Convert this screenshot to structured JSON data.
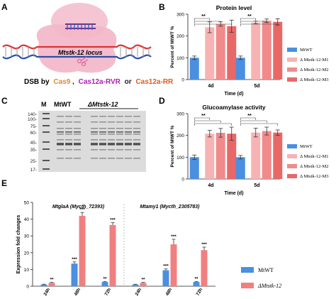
{
  "panels": {
    "A": {
      "letter": "A",
      "locus_label": "Mtstk-12 locus",
      "dsb_prefix": "DSB by",
      "enzyme1": "Cas9",
      "sep1": ",",
      "enzyme2": "Cas12a-RVR",
      "sep2": "or",
      "enzyme3": "Cas12a-RR",
      "colors": {
        "cas9": "#e08a2a",
        "cas12a_rvr": "#b01cb8",
        "cas12a_rr": "#e05a1a",
        "protein": "#f3b6c8"
      }
    },
    "C": {
      "letter": "C",
      "lane_marker": "M",
      "lane_wt": "MtWT",
      "lane_mut": "ΔMtstk-12",
      "mw_markers": [
        "140-",
        "100-",
        "75-",
        "60-",
        "45-",
        "35-",
        "25-",
        "17-"
      ]
    }
  },
  "chart_data": [
    {
      "panel": "B",
      "type": "bar",
      "title": "Protein level",
      "xlabel": "Time (d)",
      "ylabel": "Percent of MtWT %",
      "ylim": [
        0,
        300
      ],
      "yticks": [
        0,
        100,
        200,
        300
      ],
      "categories": [
        "4d",
        "5d"
      ],
      "series": [
        {
          "name": "MtWT",
          "values": [
            100,
            100
          ],
          "errors": [
            8,
            8
          ],
          "color": "#4a8fe0"
        },
        {
          "name": "Δ Mtstk-12-M1",
          "values": [
            240,
            262
          ],
          "errors": [
            25,
            6
          ],
          "color": "#f7b3b3"
        },
        {
          "name": "Δ Mtstk-12-M2",
          "values": [
            255,
            270
          ],
          "errors": [
            10,
            8
          ],
          "color": "#f18a8a"
        },
        {
          "name": "Δ Mtstk-12-M3",
          "values": [
            245,
            265
          ],
          "errors": [
            28,
            14
          ],
          "color": "#e86868"
        }
      ],
      "significance": [
        "**",
        "**"
      ],
      "legend": "right"
    },
    {
      "panel": "D",
      "type": "bar",
      "title": "Glucoamylase activity",
      "xlabel": "Time (d)",
      "ylabel": "Percent of MtWT %",
      "ylim": [
        0,
        300
      ],
      "yticks": [
        0,
        100,
        200,
        300
      ],
      "categories": [
        "4d",
        "5d"
      ],
      "series": [
        {
          "name": "MtWT",
          "values": [
            100,
            100
          ],
          "errors": [
            10,
            8
          ],
          "color": "#4a8fe0"
        },
        {
          "name": "Δ Mtstk-12-M1",
          "values": [
            208,
            213
          ],
          "errors": [
            15,
            20
          ],
          "color": "#f7b3b3"
        },
        {
          "name": "Δ Mtstk-12-M2",
          "values": [
            212,
            220
          ],
          "errors": [
            20,
            18
          ],
          "color": "#f18a8a"
        },
        {
          "name": "Δ Mtstk-12-M3",
          "values": [
            208,
            213
          ],
          "errors": [
            30,
            12
          ],
          "color": "#e86868"
        }
      ],
      "significance": [
        "**",
        "**"
      ],
      "legend": "right"
    },
    {
      "panel": "E",
      "type": "bar",
      "title": "",
      "xlabel": "",
      "ylabel": "Expression fold changes",
      "ylim": [
        0,
        50
      ],
      "yticks": [
        0,
        10,
        20,
        30,
        40,
        50
      ],
      "groups": [
        "MtglaA (Mycth_72393)",
        "Mtamy1 (Mycth_2305783)"
      ],
      "categories": [
        "24h",
        "48h",
        "72h"
      ],
      "series": [
        {
          "name": "MtWT",
          "color": "#4a8fe0",
          "values": [
            [
              1,
              13.5,
              2.5
            ],
            [
              1,
              9.5,
              2.5
            ]
          ],
          "errors": [
            [
              0.2,
              1.0,
              0.3
            ],
            [
              0.2,
              0.8,
              0.3
            ]
          ],
          "stars": [
            [
              "",
              "***",
              "**"
            ],
            [
              "",
              "***",
              "**"
            ]
          ]
        },
        {
          "name": "ΔMtstk-12",
          "color": "#f08080",
          "values": [
            [
              2,
              42,
              36.5
            ],
            [
              2,
              25,
              21.5
            ]
          ],
          "errors": [
            [
              0.3,
              2.0,
              1.5
            ],
            [
              0.3,
              3.0,
              1.8
            ]
          ],
          "stars": [
            [
              "**",
              "***",
              "***"
            ],
            [
              "**",
              "***",
              "***"
            ]
          ]
        }
      ],
      "legend": "right"
    }
  ]
}
